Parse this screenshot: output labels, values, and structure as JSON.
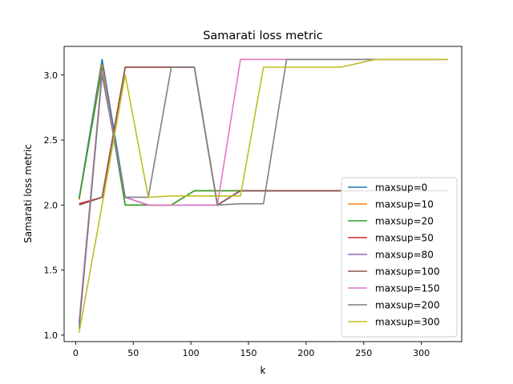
{
  "chart_data": {
    "type": "line",
    "title": "Samarati loss metric",
    "xlabel": "k",
    "ylabel": "Samarati loss metric",
    "xlim": [
      -10,
      335
    ],
    "ylim": [
      0.95,
      3.22
    ],
    "xticks": [
      0,
      50,
      100,
      150,
      200,
      250,
      300
    ],
    "yticks": [
      1.0,
      1.5,
      2.0,
      2.5,
      3.0
    ],
    "ytick_labels": [
      "1.0",
      "1.5",
      "2.0",
      "2.5",
      "3.0"
    ],
    "grid": false,
    "legend_position": "lower-right",
    "series": [
      {
        "name": "maxsup=0",
        "color": "#1f77b4",
        "x": [
          3,
          23,
          43,
          63,
          83,
          103,
          123,
          143,
          163,
          183,
          203,
          223,
          243,
          263,
          283,
          303,
          323
        ],
        "y": [
          2.05,
          3.12,
          2.06,
          2.0,
          2.0,
          2.0,
          2.0,
          2.11,
          2.11,
          2.11,
          2.11,
          2.11,
          2.11,
          2.11,
          2.11,
          2.11,
          2.11
        ]
      },
      {
        "name": "maxsup=10",
        "color": "#ff7f0e",
        "x": [
          3,
          23,
          43,
          63,
          83,
          103,
          123,
          143,
          163,
          183,
          203,
          223,
          243,
          263,
          283,
          303,
          323
        ],
        "y": [
          2.04,
          3.08,
          2.0,
          2.0,
          2.0,
          2.11,
          2.11,
          2.11,
          2.11,
          2.11,
          2.11,
          2.11,
          2.11,
          2.11,
          2.11,
          2.11,
          2.11
        ]
      },
      {
        "name": "maxsup=20",
        "color": "#2ca02c",
        "x": [
          3,
          23,
          43,
          63,
          83,
          103,
          123,
          143,
          163,
          183,
          203,
          223,
          243,
          263,
          283,
          303,
          323
        ],
        "y": [
          2.05,
          3.05,
          2.0,
          2.0,
          2.0,
          2.11,
          2.11,
          2.11,
          2.11,
          2.11,
          2.11,
          2.11,
          2.11,
          2.11,
          2.11,
          2.11,
          2.11
        ]
      },
      {
        "name": "maxsup=50",
        "color": "#d62728",
        "x": [
          3,
          23,
          43,
          63,
          83,
          103,
          123,
          143,
          163,
          183,
          203,
          223,
          243,
          263,
          283,
          303,
          323
        ],
        "y": [
          2.01,
          2.06,
          3.06,
          3.06,
          3.06,
          3.06,
          2.0,
          2.11,
          2.11,
          2.11,
          2.11,
          2.11,
          2.11,
          2.11,
          2.11,
          2.11,
          2.11
        ]
      },
      {
        "name": "maxsup=80",
        "color": "#9467bd",
        "x": [
          3,
          23,
          43,
          63,
          83,
          103,
          123,
          143,
          163,
          183,
          203,
          223,
          243,
          263,
          283,
          303,
          323
        ],
        "y": [
          1.1,
          3.03,
          2.06,
          2.0,
          2.0,
          2.0,
          2.0,
          2.11,
          2.11,
          2.11,
          2.11,
          2.11,
          2.11,
          2.11,
          2.11,
          2.11,
          2.11
        ]
      },
      {
        "name": "maxsup=100",
        "color": "#8c564b",
        "x": [
          3,
          23,
          43,
          63,
          83,
          103,
          123,
          143,
          163,
          183,
          203,
          223,
          243,
          263,
          283,
          303,
          323
        ],
        "y": [
          2.0,
          2.06,
          3.06,
          3.06,
          3.06,
          3.06,
          2.0,
          2.11,
          2.11,
          2.11,
          2.11,
          2.11,
          2.11,
          2.11,
          2.11,
          2.11,
          2.11
        ]
      },
      {
        "name": "maxsup=150",
        "color": "#e377c2",
        "x": [
          3,
          23,
          43,
          63,
          83,
          103,
          123,
          143,
          163,
          183,
          203,
          223,
          243,
          263,
          283,
          303,
          323
        ],
        "y": [
          1.08,
          3.03,
          2.06,
          2.0,
          2.0,
          2.0,
          2.0,
          3.12,
          3.12,
          3.12,
          3.12,
          3.12,
          3.12,
          3.12,
          3.12,
          3.12,
          3.12
        ]
      },
      {
        "name": "maxsup=200",
        "color": "#7f7f7f",
        "x": [
          3,
          23,
          43,
          63,
          83,
          103,
          123,
          143,
          163,
          183,
          203,
          223,
          243,
          263,
          283,
          303,
          323
        ],
        "y": [
          1.05,
          3.0,
          2.06,
          2.06,
          3.06,
          3.06,
          2.0,
          2.01,
          2.01,
          3.12,
          3.12,
          3.12,
          3.12,
          3.12,
          3.12,
          3.12,
          3.12
        ]
      },
      {
        "name": "maxsup=300",
        "color": "#bcbd22",
        "x": [
          3,
          23,
          43,
          63,
          83,
          103,
          123,
          143,
          163,
          183,
          203,
          223,
          230,
          260,
          283,
          303,
          323
        ],
        "y": [
          1.02,
          2.0,
          3.0,
          2.06,
          2.07,
          2.07,
          2.07,
          2.07,
          3.06,
          3.06,
          3.06,
          3.06,
          3.06,
          3.12,
          3.12,
          3.12,
          3.12
        ]
      }
    ]
  }
}
